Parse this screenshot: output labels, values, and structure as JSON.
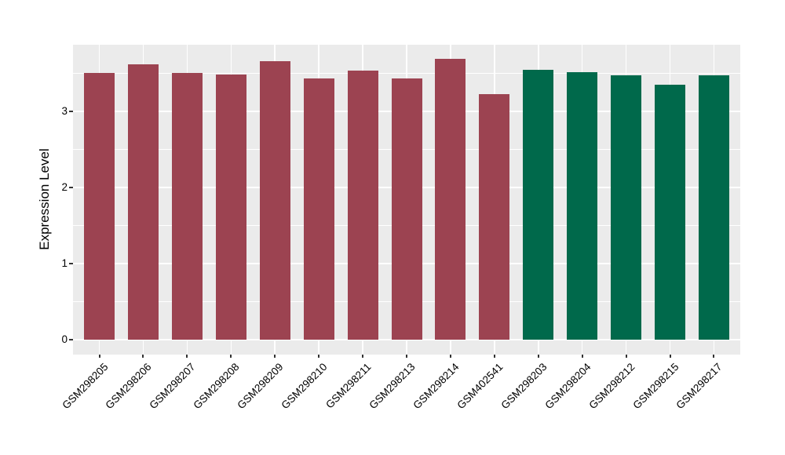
{
  "chart_data": {
    "type": "bar",
    "title": "",
    "xlabel": "",
    "ylabel": "Expression Level",
    "categories": [
      "GSM298205",
      "GSM298206",
      "GSM298207",
      "GSM298208",
      "GSM298209",
      "GSM298210",
      "GSM298211",
      "GSM298213",
      "GSM298214",
      "GSM402541",
      "GSM298203",
      "GSM298204",
      "GSM298212",
      "GSM298215",
      "GSM298217"
    ],
    "values": [
      3.5,
      3.62,
      3.5,
      3.48,
      3.66,
      3.43,
      3.53,
      3.43,
      3.69,
      3.22,
      3.54,
      3.51,
      3.47,
      3.35,
      3.47
    ],
    "bar_groups": [
      "maroon",
      "maroon",
      "maroon",
      "maroon",
      "maroon",
      "maroon",
      "maroon",
      "maroon",
      "maroon",
      "maroon",
      "green",
      "green",
      "green",
      "green",
      "green"
    ],
    "palette": {
      "maroon": "#9C4351",
      "green": "#00694B"
    },
    "yticks": [
      0,
      1,
      2,
      3
    ],
    "yticks_minor": [
      0.5,
      1.5,
      2.5,
      3.5
    ],
    "ylim": [
      -0.19,
      3.87
    ],
    "grid": "on",
    "legend": "none",
    "panel_background": "#EBEBEB",
    "grid_color": "#FFFFFF",
    "tick_color": "#333333",
    "text_color": "#000000"
  }
}
